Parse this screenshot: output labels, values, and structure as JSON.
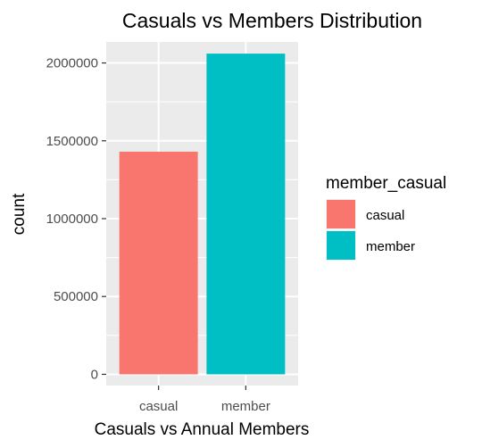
{
  "chart_data": {
    "type": "bar",
    "title": "Casuals vs Members Distribution",
    "xlabel": "Casuals vs Annual Members",
    "ylabel": "count",
    "categories": [
      "casual",
      "member"
    ],
    "values": [
      1430000,
      2060000
    ],
    "colors": [
      "#F8766D",
      "#00BFC4"
    ],
    "yticks": [
      0,
      500000,
      1000000,
      1500000,
      2000000
    ],
    "ytick_labels": [
      "0",
      "500000",
      "1000000",
      "1500000",
      "2000000"
    ],
    "ylim": [
      -72000,
      2135000
    ],
    "grid": true,
    "panel_background": "#EBEBEB",
    "legend": {
      "title": "member_casual",
      "position": "right",
      "entries": [
        "casual",
        "member"
      ]
    }
  }
}
